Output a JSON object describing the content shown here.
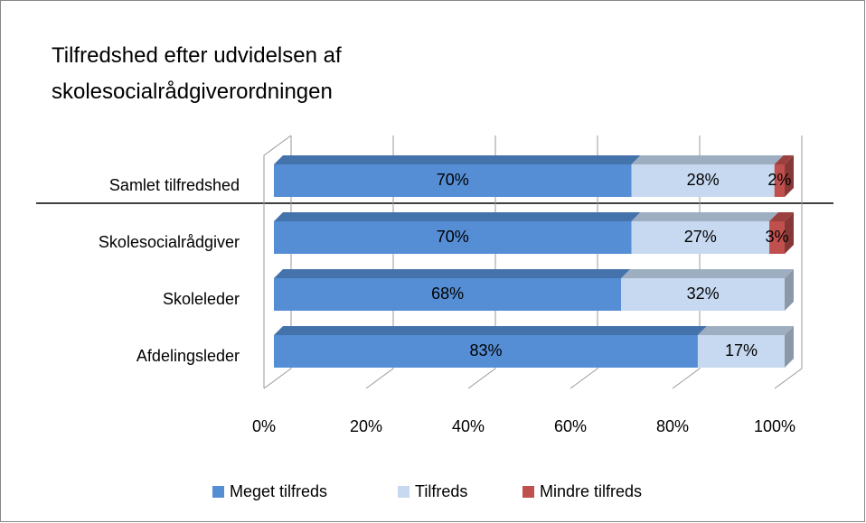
{
  "chart_data": {
    "type": "bar3d_stacked_horizontal",
    "title": "Tilfredshed efter udvidelsen af skolesocialrådgiverordningen",
    "categories": [
      "Samlet tilfredshed",
      "Skolesocialrådgiver",
      "Skoleleder",
      "Afdelingsleder"
    ],
    "series": [
      {
        "name": "Meget tilfreds",
        "color": "#558ed5",
        "values": [
          70,
          70,
          68,
          83
        ],
        "value_labels": [
          "70%",
          "70%",
          "68%",
          "83%"
        ]
      },
      {
        "name": "Tilfreds",
        "color": "#c6d9f1",
        "values": [
          28,
          27,
          32,
          17
        ],
        "value_labels": [
          "28%",
          "27%",
          "32%",
          "17%"
        ]
      },
      {
        "name": "Mindre tilfreds",
        "color": "#c0504d",
        "values": [
          2,
          3,
          null,
          null
        ],
        "value_labels": [
          "2%",
          "3%",
          null,
          null
        ]
      }
    ],
    "xlim": [
      0,
      100
    ],
    "xticks": [
      {
        "value": 0,
        "label": "0%"
      },
      {
        "value": 20,
        "label": "20%"
      },
      {
        "value": 40,
        "label": "40%"
      },
      {
        "value": 60,
        "label": "60%"
      },
      {
        "value": 80,
        "label": "80%"
      },
      {
        "value": 100,
        "label": "100%"
      }
    ],
    "grid": true,
    "legend": "bottom"
  }
}
